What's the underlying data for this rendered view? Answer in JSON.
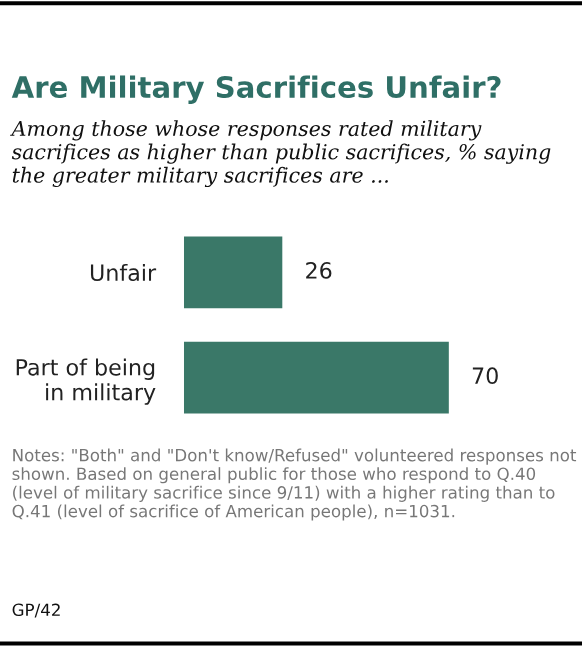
{
  "chart_data": {
    "type": "bar",
    "orientation": "horizontal",
    "title": "Are Military Sacrifices Unfair?",
    "subtitle": "Among those whose responses rated military sacrifices as higher than public sacrifices, % saying the greater military sacrifices are ...",
    "categories": [
      "Unfair",
      "Part of being\nin military"
    ],
    "values": [
      26,
      70
    ],
    "color": "#3a7868",
    "data_labels": true,
    "grid": false,
    "legend": false,
    "annotations": [
      "Notes: \"Both\" and \"Don't know/Refused\" volunteered responses not shown. Based on general public for those who respond to Q.40 (level of military sacrifice since 9/11) with a higher rating than to Q.41 (level of sacrifice of American people), n=1031.",
      "GP/42"
    ]
  }
}
